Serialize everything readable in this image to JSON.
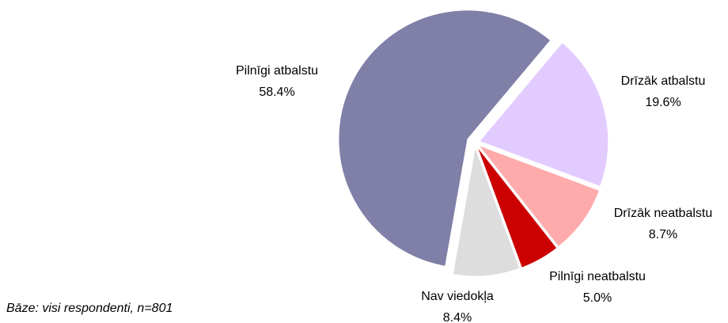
{
  "chart_data": {
    "type": "pie",
    "categories": [
      "Pilnīgi atbalstu",
      "Drīzāk atbalstu",
      "Drīzāk neatbalstu",
      "Pilnīgi neatbalstu",
      "Nav viedokļa"
    ],
    "values": [
      58.4,
      19.6,
      8.7,
      5.0,
      8.4
    ],
    "value_labels": [
      "58.4%",
      "19.6%",
      "8.7%",
      "5.0%",
      "8.4%"
    ],
    "colors": [
      "#7f7fa8",
      "#e2ccff",
      "#ffabab",
      "#cc0000",
      "#dddddd"
    ],
    "annotation": "Bāze: visi respondenti, n=801"
  }
}
